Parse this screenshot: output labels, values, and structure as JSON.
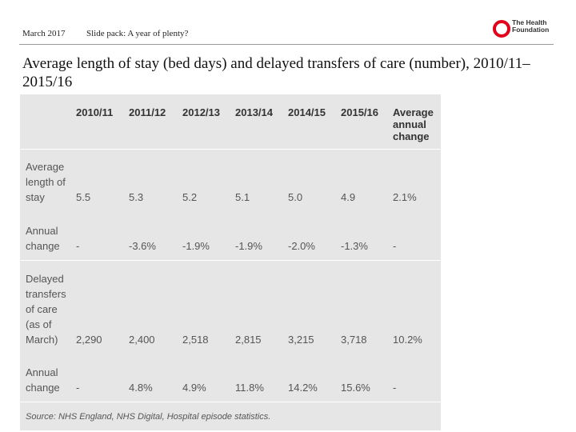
{
  "header": {
    "date": "March 2017",
    "slide_title": "Slide pack: A year of plenty?",
    "logo": "The Health Foundation"
  },
  "title": "Average length of stay (bed days) and delayed transfers of care (number), 2010/11–2015/16",
  "table": {
    "columns": [
      "",
      "2010/11",
      "2011/12",
      "2012/13",
      "2013/14",
      "2014/15",
      "2015/16",
      "Average annual change"
    ],
    "rows": [
      [
        "Average length of stay",
        "5.5",
        "5.3",
        "5.2",
        "5.1",
        "5.0",
        "4.9",
        "2.1%"
      ],
      [
        "Annual change",
        "-",
        "-3.6%",
        "-1.9%",
        "-1.9%",
        "-2.0%",
        "-1.3%",
        "-"
      ],
      [
        "Delayed transfers of care (as of March)",
        "2,290",
        "2,400",
        "2,518",
        "2,815",
        "3,215",
        "3,718",
        "10.2%"
      ],
      [
        "Annual change",
        "-",
        "4.8%",
        "4.9%",
        "11.8%",
        "14.2%",
        "15.6%",
        "-"
      ]
    ],
    "source": "Source: NHS England, NHS Digital, Hospital episode statistics."
  }
}
